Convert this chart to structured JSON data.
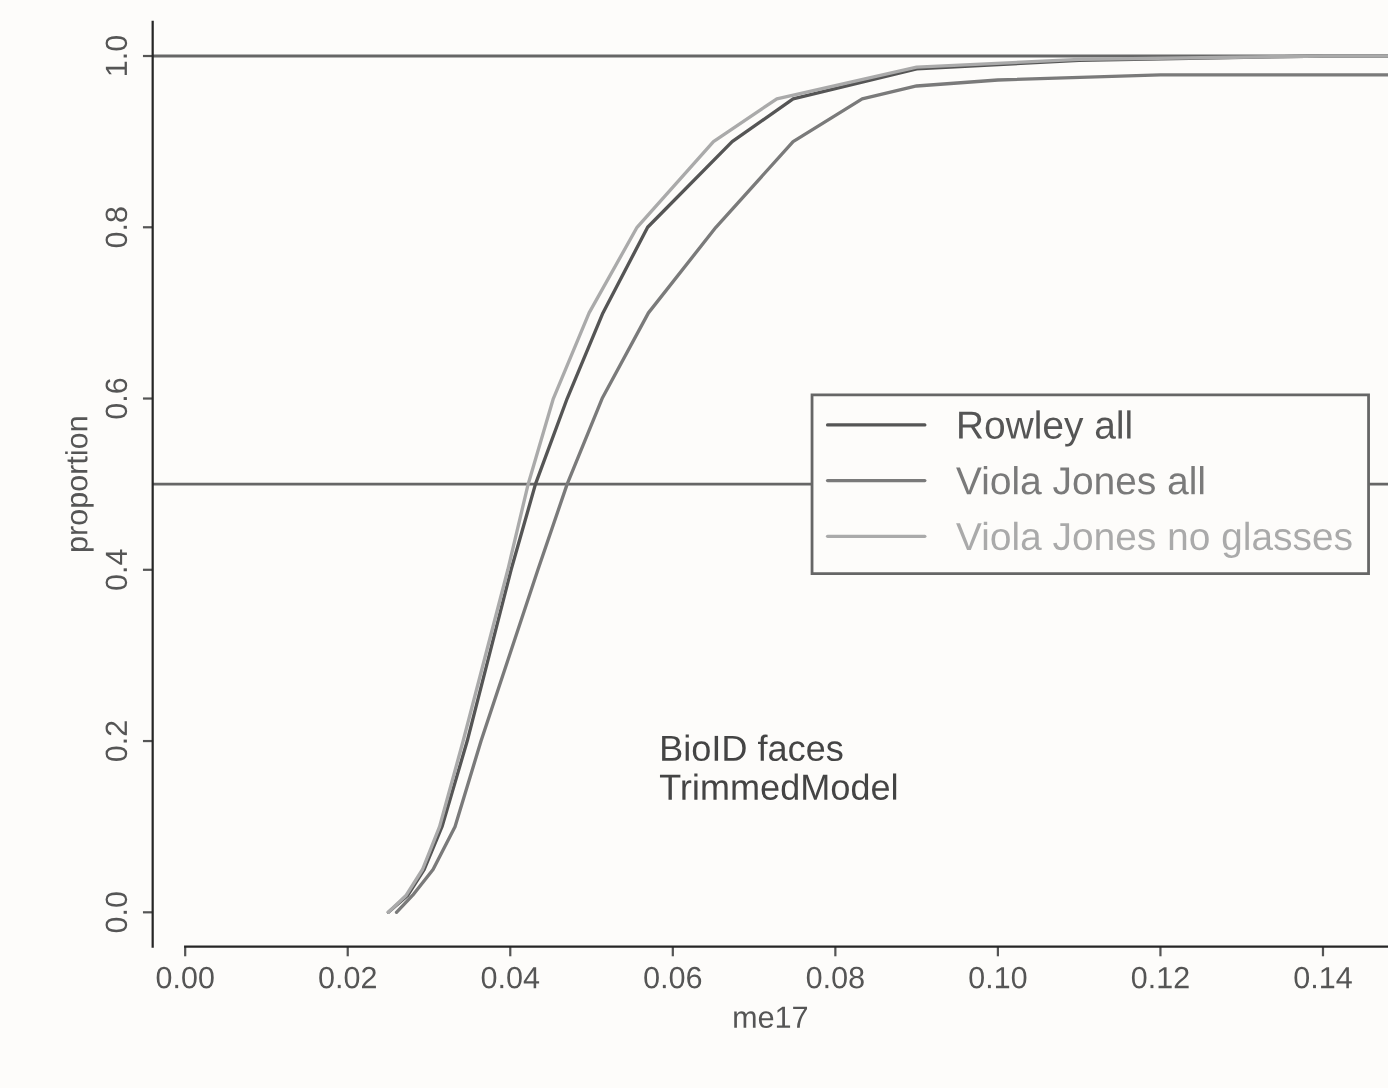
{
  "chart_data": {
    "type": "line",
    "xlabel": "me17",
    "ylabel": "proportion",
    "xlim": [
      -0.004,
      0.148
    ],
    "ylim": [
      -0.04,
      1.04
    ],
    "xticks": [
      {
        "value": 0,
        "label": "0.00"
      },
      {
        "value": 0.02,
        "label": "0.02"
      },
      {
        "value": 0.04,
        "label": "0.04"
      },
      {
        "value": 0.06,
        "label": "0.06"
      },
      {
        "value": 0.08,
        "label": "0.08"
      },
      {
        "value": 0.1,
        "label": "0.10"
      },
      {
        "value": 0.12,
        "label": "0.12"
      },
      {
        "value": 0.14,
        "label": "0.14"
      }
    ],
    "yticks": [
      {
        "value": 0,
        "label": "0.0"
      },
      0.2,
      0.4,
      0.6,
      0.8,
      {
        "value": 1,
        "label": "1.0"
      }
    ],
    "series": [
      {
        "name": "Rowley all",
        "color": "#555555",
        "x": [
          0.025,
          0.0274,
          0.0294,
          0.0316,
          0.0347,
          0.0401,
          0.0431,
          0.047,
          0.0514,
          0.0569,
          0.0673,
          0.0748,
          0.09,
          0.11,
          0.14,
          0.148
        ],
        "values": [
          0,
          0.02,
          0.05,
          0.1,
          0.2,
          0.4,
          0.5,
          0.6,
          0.7,
          0.8,
          0.9,
          0.95,
          0.985,
          0.995,
          1.0,
          1.0
        ]
      },
      {
        "name": "Viola Jones all",
        "color": "#7a7a7a",
        "x": [
          0.026,
          0.028,
          0.0305,
          0.0332,
          0.0364,
          0.0434,
          0.047,
          0.0513,
          0.057,
          0.0653,
          0.0748,
          0.0833,
          0.09,
          0.1,
          0.12,
          0.148
        ],
        "values": [
          0,
          0.02,
          0.05,
          0.1,
          0.2,
          0.4,
          0.5,
          0.6,
          0.7,
          0.8,
          0.9,
          0.95,
          0.965,
          0.972,
          0.978,
          0.978
        ]
      },
      {
        "name": "Viola Jones no glasses",
        "color": "#aaaaaa",
        "x": [
          0.025,
          0.0272,
          0.0292,
          0.0313,
          0.0342,
          0.0397,
          0.0422,
          0.0453,
          0.0497,
          0.0556,
          0.065,
          0.0728,
          0.09,
          0.11,
          0.14,
          0.148
        ],
        "values": [
          0,
          0.02,
          0.05,
          0.1,
          0.2,
          0.4,
          0.5,
          0.6,
          0.7,
          0.8,
          0.9,
          0.95,
          0.987,
          0.996,
          1.0,
          1.0
        ]
      }
    ],
    "ref_lines": [
      {
        "axis": "y",
        "value": 1,
        "color": "#666666"
      },
      {
        "axis": "y",
        "value": 0.5,
        "color": "#666666"
      }
    ],
    "annotations": [
      "BioID faces\nTrimmedModel"
    ],
    "legend": "center right",
    "grid": false,
    "marker": "none",
    "line_style": "solid"
  }
}
